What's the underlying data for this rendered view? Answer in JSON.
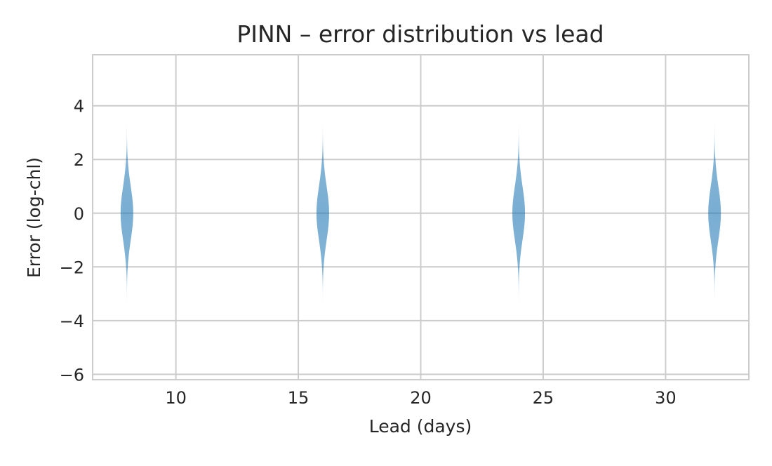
{
  "chart_data": {
    "type": "violin",
    "title": "PINN – error distribution vs lead",
    "xlabel": "Lead (days)",
    "ylabel": "Error (log-chl)",
    "xlim": [
      6.6,
      33.4
    ],
    "ylim": [
      -6.2,
      5.9
    ],
    "xticks": [
      10,
      15,
      20,
      25,
      30
    ],
    "xtick_labels": [
      "10",
      "15",
      "20",
      "25",
      "30"
    ],
    "yticks": [
      -6,
      -4,
      -2,
      0,
      2,
      4
    ],
    "ytick_labels": [
      "−6",
      "−4",
      "−2",
      "0",
      "2",
      "4"
    ],
    "grid": true,
    "violin_color": "#1f77b4",
    "violins": [
      {
        "lead": 8,
        "center": 0,
        "min": -3.5,
        "max": 3.8,
        "sd": 1.0
      },
      {
        "lead": 16,
        "center": 0,
        "min": -3.5,
        "max": 3.8,
        "sd": 1.0
      },
      {
        "lead": 24,
        "center": 0,
        "min": -3.5,
        "max": 3.8,
        "sd": 1.0
      },
      {
        "lead": 32,
        "center": 0,
        "min": -3.5,
        "max": 3.8,
        "sd": 1.0
      }
    ]
  }
}
